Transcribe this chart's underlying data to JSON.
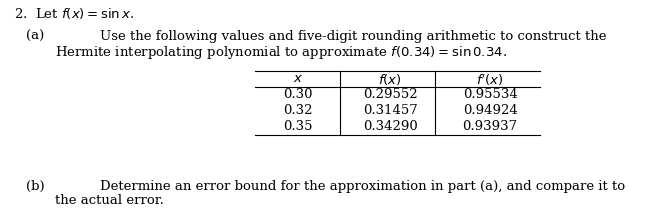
{
  "title_line": "2.  Let $f(x) = \\sin x$.",
  "part_a_label": "(a)",
  "part_a_text_line1": "Use the following values and five-digit rounding arithmetic to construct the",
  "part_a_text_line2": "Hermite interpolating polynomial to approximate $f(0.34) = \\sin 0.34$.",
  "table_headers": [
    "$x$",
    "$f(x)$",
    "$f'(x)$"
  ],
  "table_data": [
    [
      "0.30",
      "0.29552",
      "0.95534"
    ],
    [
      "0.32",
      "0.31457",
      "0.94924"
    ],
    [
      "0.35",
      "0.34290",
      "0.93937"
    ]
  ],
  "part_b_label": "(b)",
  "part_b_text_line1": "Determine an error bound for the approximation in part (a), and compare it to",
  "part_b_text_line2": "the actual error.",
  "bg_color": "#ffffff",
  "text_color": "#000000",
  "font_size": 9.5
}
